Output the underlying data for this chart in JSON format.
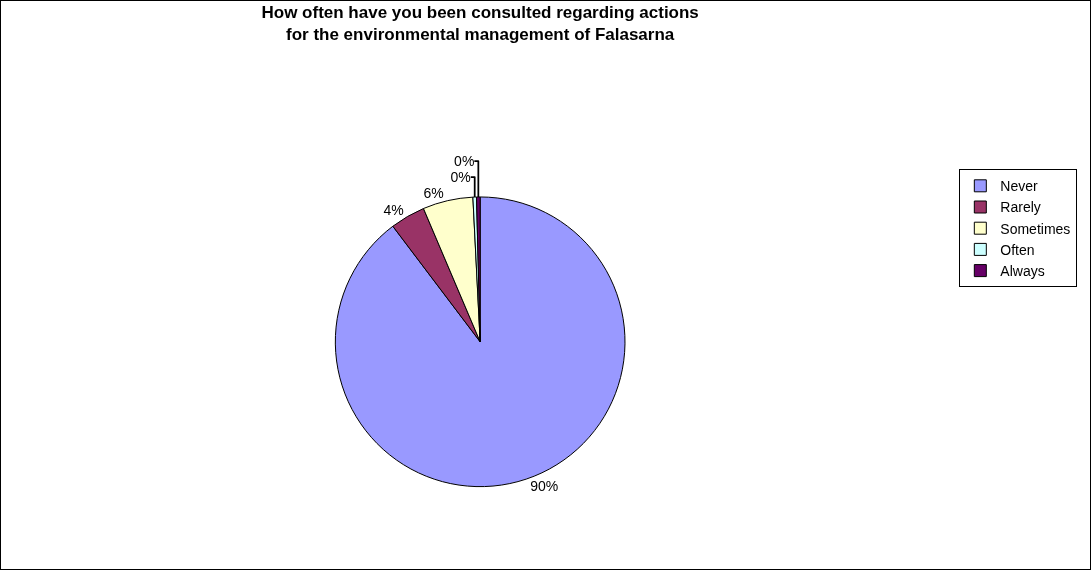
{
  "chart_data": {
    "type": "pie",
    "title": "How often have you been consulted regarding actions for the environmental management of Falasarna",
    "categories": [
      "Never",
      "Rarely",
      "Sometimes",
      "Often",
      "Always"
    ],
    "values": [
      89.7,
      3.9,
      5.6,
      0.4,
      0.4
    ],
    "value_labels": [
      "90%",
      "4%",
      "6%",
      "0%",
      "0%"
    ],
    "colors": [
      "#9999ff",
      "#993366",
      "#ffffcc",
      "#ccffff",
      "#660066"
    ],
    "legend": "right"
  }
}
